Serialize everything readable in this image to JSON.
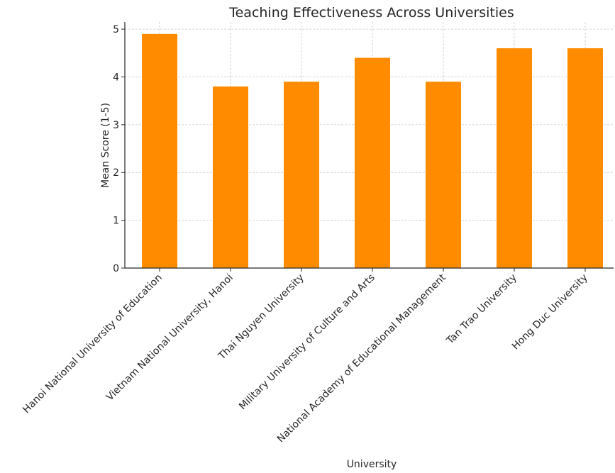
{
  "chart_data": {
    "type": "bar",
    "title": "Teaching Effectiveness Across Universities",
    "xlabel": "University",
    "ylabel": "Mean Score (1-5)",
    "categories": [
      "Hanoi National University of Education",
      "Vietnam National University, Hanoi",
      "Thai Nguyen University",
      "Military University of Culture and Arts",
      "National Academy of Educational Management",
      "Tan Trao University",
      "Hong Duc University"
    ],
    "values": [
      4.9,
      3.8,
      3.9,
      4.4,
      3.9,
      4.6,
      4.6
    ],
    "ylim": [
      0,
      5.15
    ],
    "yticks": [
      0,
      1,
      2,
      3,
      4,
      5
    ],
    "grid": true,
    "bar_color": "#ff8c00"
  }
}
